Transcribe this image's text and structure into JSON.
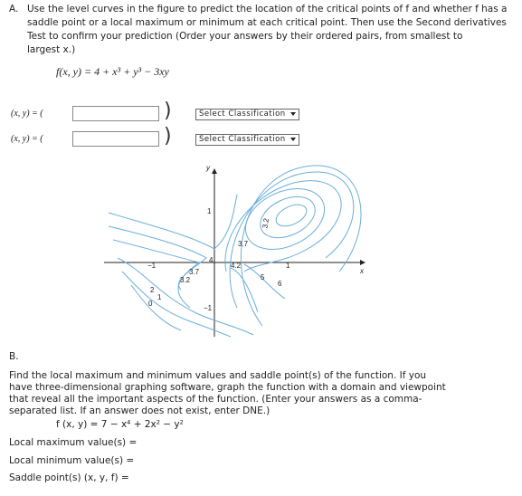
{
  "part_a": {
    "label": "A.",
    "instructions": [
      "Use the level curves in the figure to predict the location of the critical points of f and whether f has a",
      "saddle point or a local maximum or minimum at each critical point. Then use the Second derivatives",
      "Test to confirm your prediction (Order your answers by their ordered pairs, from smallest to",
      "largest x.)"
    ],
    "function": "f(x, y) = 4 + x³ + y³ − 3xy",
    "rows": [
      {
        "prefix": "(x, y) = (",
        "close": ")",
        "select": "Select Classification"
      },
      {
        "prefix": "(x, y) = (",
        "close": ")",
        "select": "Select Classification"
      }
    ]
  },
  "figure": {
    "axis_x": "x",
    "axis_y": "y",
    "tick_labels": [
      "1",
      "−1",
      "1",
      "−1"
    ],
    "contour_labels": [
      "3.2",
      "3.7",
      "4",
      "4.2",
      "5",
      "6",
      "3.7",
      "3.2",
      "2",
      "1",
      "0"
    ]
  },
  "part_b": {
    "label": "B.",
    "instructions": [
      "Find the local maximum and minimum values and saddle point(s) of the function. If you",
      "have three-dimensional graphing software, graph the function with a domain and viewpoint",
      "that reveal all the important aspects of the function. (Enter your answers as a comma-",
      "separated list. If an answer does not exist, enter DNE.)"
    ],
    "function": "f (x, y) = 7 − x⁴ + 2x² − y²",
    "answers": [
      "Local maximum value(s) =",
      "Local minimum value(s) =",
      "Saddle point(s) (x, y, f) ="
    ]
  }
}
